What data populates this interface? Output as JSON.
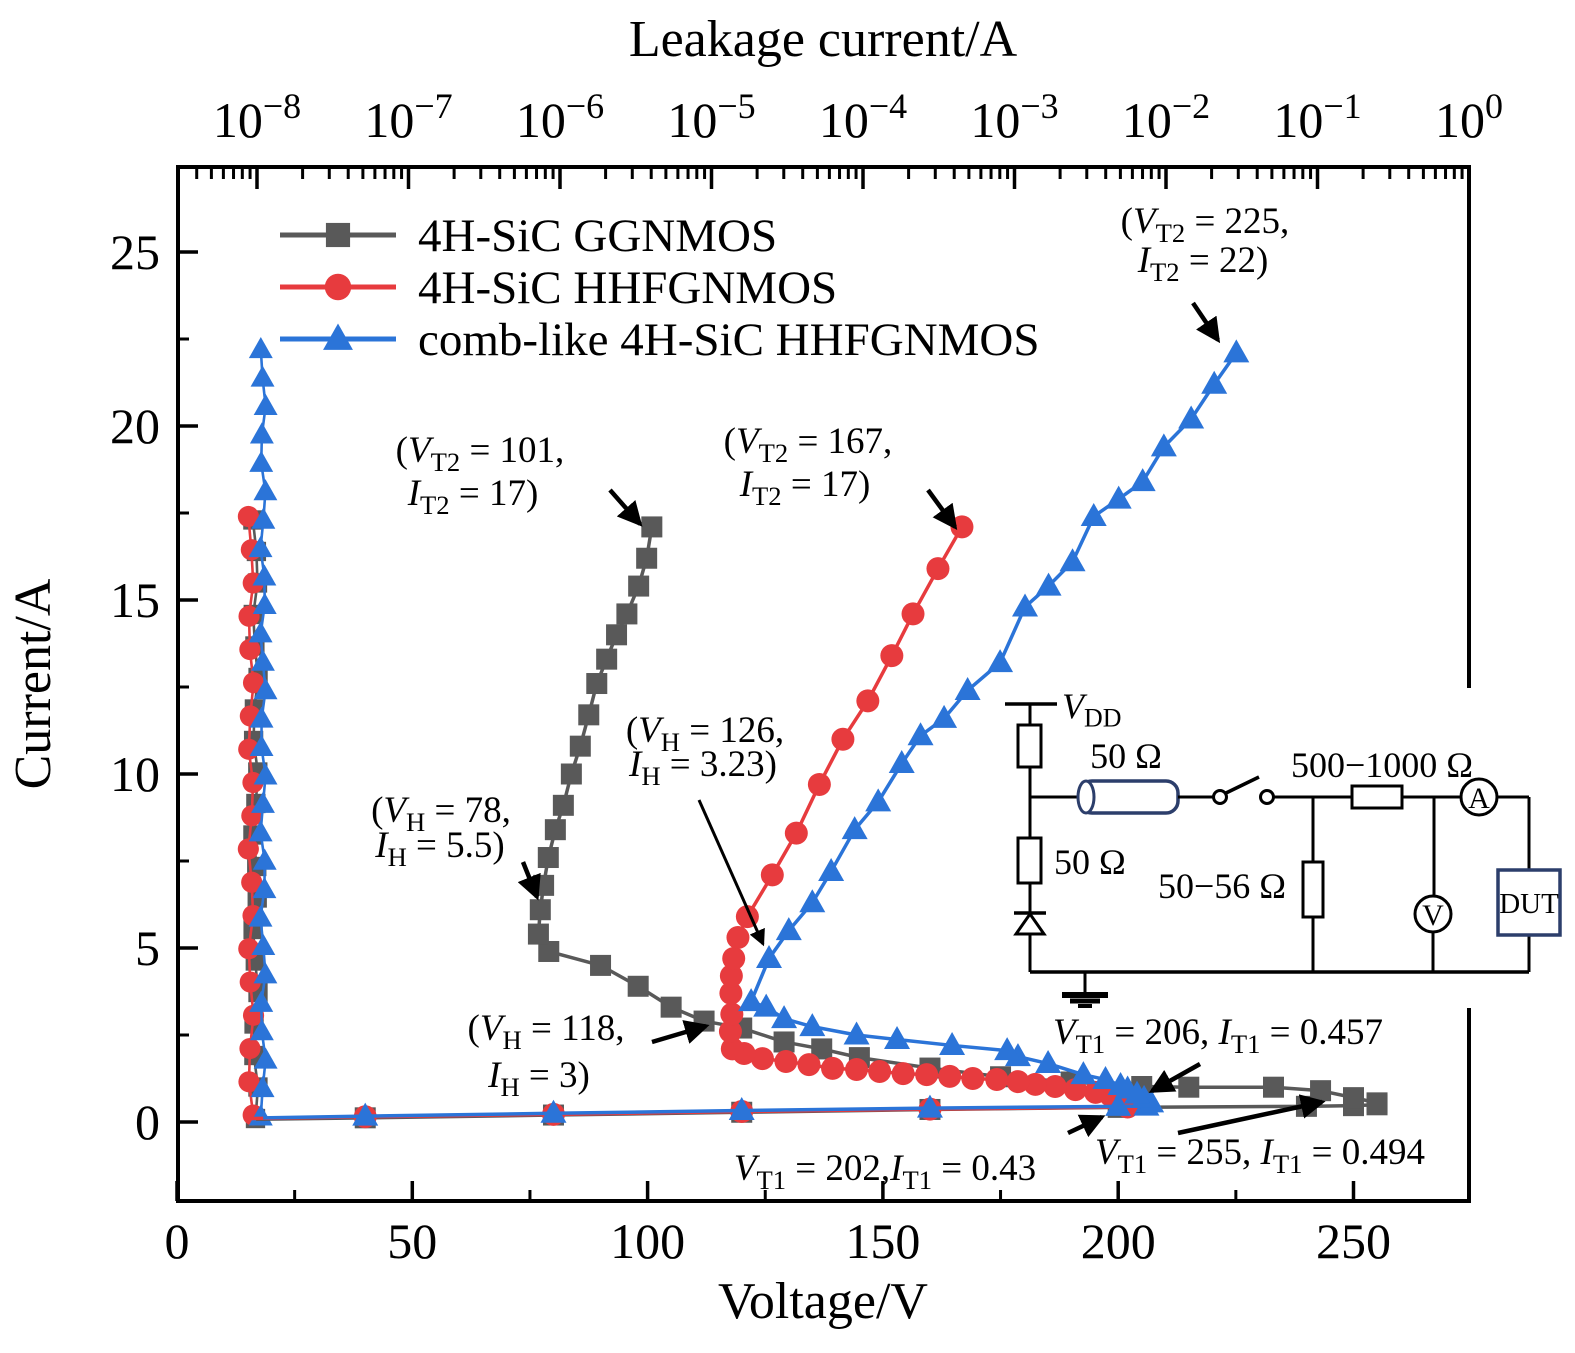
{
  "title_top": "Leakage current/A",
  "axes": {
    "x_bottom": {
      "label": "Voltage/V",
      "major_ticks": [
        0,
        50,
        100,
        150,
        200,
        250
      ],
      "minor_ticks": [
        25,
        75,
        125,
        175,
        225
      ],
      "range": [
        0,
        274
      ]
    },
    "y_left": {
      "label": "Current/A",
      "major_ticks": [
        0,
        5,
        10,
        15,
        20,
        25
      ],
      "minor_ticks": [
        2.5,
        7.5,
        12.5,
        17.5,
        22.5
      ],
      "range": [
        -2.3,
        27.7
      ]
    },
    "x_top": {
      "scale": "log",
      "decade_exponents": [
        -8,
        -7,
        -6,
        -5,
        -4,
        -3,
        -2,
        -1,
        0
      ]
    }
  },
  "legend": [
    {
      "label": "4H-SiC GGNMOS",
      "color": "#595959",
      "marker": "square"
    },
    {
      "label": "4H-SiC HHFGNMOS",
      "color": "#e73b3e",
      "marker": "circle"
    },
    {
      "label": "comb-like 4H-SiC HHFGNMOS",
      "color": "#2b74d8",
      "marker": "triangle"
    }
  ],
  "chart_data": {
    "type": "line",
    "title": "",
    "xlabel": "Voltage/V",
    "ylabel": "Current/A",
    "x2label": "Leakage current/A",
    "xlim": [
      0,
      274
    ],
    "ylim": [
      -2.3,
      27.7
    ],
    "x2lim_log10": [
      -8.52,
      0
    ],
    "series": [
      {
        "name": "4H-SiC GGNMOS",
        "color": "#595959",
        "marker": "square",
        "key_points": {
          "VT1": [
            255,
            0.494
          ],
          "VH": [
            78,
            5.5
          ],
          "VT2": [
            101,
            17
          ]
        },
        "tlp_points": [
          [
            16.8,
            0.08
          ],
          [
            40,
            0.12
          ],
          [
            80,
            0.2
          ],
          [
            120,
            0.28
          ],
          [
            160,
            0.36
          ],
          [
            200,
            0.42
          ],
          [
            240,
            0.45
          ],
          [
            250,
            0.47
          ],
          [
            255,
            0.494
          ],
          [
            255,
            0.55
          ],
          [
            250,
            0.7
          ],
          [
            243,
            0.9
          ],
          [
            233,
            1.0
          ],
          [
            215,
            1.0
          ],
          [
            205,
            1.02
          ],
          [
            190,
            1.15
          ],
          [
            175,
            1.3
          ],
          [
            160,
            1.55
          ],
          [
            145,
            1.85
          ],
          [
            137,
            2.1
          ],
          [
            129,
            2.3
          ],
          [
            120,
            2.7
          ],
          [
            112,
            2.9
          ],
          [
            105,
            3.3
          ],
          [
            98,
            3.9
          ],
          [
            90,
            4.5
          ],
          [
            79,
            4.9
          ],
          [
            76.8,
            5.4
          ],
          [
            77.2,
            6.1
          ],
          [
            77.9,
            6.8
          ],
          [
            78.9,
            7.6
          ],
          [
            80.4,
            8.4
          ],
          [
            82.1,
            9.1
          ],
          [
            83.8,
            10.0
          ],
          [
            85.7,
            10.8
          ],
          [
            87.5,
            11.7
          ],
          [
            89.2,
            12.6
          ],
          [
            91.3,
            13.3
          ],
          [
            93.4,
            14.0
          ],
          [
            95.6,
            14.6
          ],
          [
            98.1,
            15.4
          ],
          [
            99.8,
            16.2
          ],
          [
            100.9,
            17.1
          ]
        ],
        "leakage_line": {
          "log10_A": -8.01,
          "i_from": 0.1,
          "i_to": 17.3,
          "n_points": 20
        }
      },
      {
        "name": "4H-SiC HHFGNMOS",
        "color": "#e73b3e",
        "marker": "circle",
        "key_points": {
          "VT1": [
            202,
            0.43
          ],
          "VH": [
            118,
            3
          ],
          "VT2": [
            167,
            17
          ]
        },
        "tlp_points": [
          [
            15.7,
            0.1
          ],
          [
            40,
            0.15
          ],
          [
            80,
            0.22
          ],
          [
            120,
            0.3
          ],
          [
            160,
            0.37
          ],
          [
            202,
            0.43
          ],
          [
            201.5,
            0.62
          ],
          [
            198.4,
            0.76
          ],
          [
            195.2,
            0.85
          ],
          [
            190.9,
            0.93
          ],
          [
            186.6,
            1.02
          ],
          [
            182.4,
            1.08
          ],
          [
            178.7,
            1.16
          ],
          [
            174.2,
            1.22
          ],
          [
            169.1,
            1.25
          ],
          [
            164.2,
            1.31
          ],
          [
            159.3,
            1.36
          ],
          [
            154.3,
            1.39
          ],
          [
            149.3,
            1.45
          ],
          [
            144.4,
            1.51
          ],
          [
            139.3,
            1.54
          ],
          [
            134.3,
            1.65
          ],
          [
            129.4,
            1.74
          ],
          [
            124.4,
            1.82
          ],
          [
            120.5,
            1.97
          ],
          [
            118,
            2.1
          ],
          [
            117.6,
            2.6
          ],
          [
            117.9,
            3.1
          ],
          [
            117.7,
            3.7
          ],
          [
            117.8,
            4.2
          ],
          [
            118.3,
            4.7
          ],
          [
            119.2,
            5.3
          ],
          [
            121.2,
            5.9
          ],
          [
            126.5,
            7.1
          ],
          [
            131.6,
            8.3
          ],
          [
            136.5,
            9.7
          ],
          [
            141.5,
            11.0
          ],
          [
            146.8,
            12.1
          ],
          [
            151.9,
            13.4
          ],
          [
            156.4,
            14.6
          ],
          [
            161.7,
            15.9
          ],
          [
            166.8,
            17.1
          ]
        ],
        "leakage_line": {
          "log10_A": -8.04,
          "i_from": 0.2,
          "i_to": 17.4,
          "n_points": 19
        }
      },
      {
        "name": "comb-like 4H-SiC HHFGNMOS",
        "color": "#2b74d8",
        "marker": "triangle",
        "key_points": {
          "VT1": [
            206,
            0.457
          ],
          "VH": [
            126,
            3.23
          ],
          "VT2": [
            225,
            22
          ]
        },
        "tlp_points": [
          [
            18.3,
            0.12
          ],
          [
            40,
            0.17
          ],
          [
            80,
            0.25
          ],
          [
            120,
            0.33
          ],
          [
            160,
            0.4
          ],
          [
            200,
            0.45
          ],
          [
            206,
            0.457
          ],
          [
            207,
            0.55
          ],
          [
            205.5,
            0.68
          ],
          [
            204,
            0.8
          ],
          [
            202,
            0.95
          ],
          [
            200.5,
            1.05
          ],
          [
            197.3,
            1.22
          ],
          [
            192.6,
            1.36
          ],
          [
            185.1,
            1.68
          ],
          [
            178.7,
            1.88
          ],
          [
            176.4,
            2.05
          ],
          [
            164.7,
            2.2
          ],
          [
            153,
            2.37
          ],
          [
            144.4,
            2.5
          ],
          [
            135,
            2.74
          ],
          [
            129,
            2.97
          ],
          [
            125.2,
            3.3
          ],
          [
            122,
            3.46
          ],
          [
            125.8,
            4.7
          ],
          [
            130,
            5.5
          ],
          [
            135,
            6.3
          ],
          [
            139,
            7.2
          ],
          [
            144,
            8.4
          ],
          [
            149,
            9.2
          ],
          [
            154,
            10.3
          ],
          [
            158,
            11.1
          ],
          [
            163,
            11.6
          ],
          [
            168,
            12.4
          ],
          [
            174.9,
            13.2
          ],
          [
            180.2,
            14.8
          ],
          [
            185.2,
            15.4
          ],
          [
            190.3,
            16.1
          ],
          [
            194.8,
            17.4
          ],
          [
            200.1,
            17.9
          ],
          [
            205.2,
            18.4
          ],
          [
            209.7,
            19.4
          ],
          [
            215.5,
            20.2
          ],
          [
            220.4,
            21.2
          ],
          [
            225.1,
            22.1
          ]
        ],
        "leakage_line": {
          "log10_A": -7.96,
          "i_from": 0.15,
          "i_to": 22.2,
          "n_points": 28
        }
      }
    ]
  },
  "annotations": [
    {
      "id": "vt2-ggnmos",
      "lines": [
        "(V_T2 = 101,",
        "I_T2 = 17)"
      ]
    },
    {
      "id": "vt2-hhfgnmos",
      "lines": [
        "(V_T2 = 167,",
        "I_T2 = 17)"
      ]
    },
    {
      "id": "vt2-comb",
      "lines": [
        "(V_T2 = 225,",
        "I_T2 = 22)"
      ]
    },
    {
      "id": "vh-ggnmos",
      "lines": [
        "(V_H = 78,",
        "I_H = 5.5)"
      ]
    },
    {
      "id": "vh-comb",
      "lines": [
        "(V_H = 126,",
        "I_H = 3.23)"
      ]
    },
    {
      "id": "vh-hhfgnmos",
      "lines": [
        "(V_H = 118,",
        "I_H = 3)"
      ]
    },
    {
      "id": "vt1-hhfgnmos",
      "lines": [
        "V_T1 = 202,I_T1 = 0.43"
      ]
    },
    {
      "id": "vt1-comb",
      "lines": [
        "V_T1 = 206, I_T1 = 0.457"
      ]
    },
    {
      "id": "vt1-ggnmos",
      "lines": [
        "V_T1 = 255, I_T1 = 0.494"
      ]
    }
  ],
  "circuit": {
    "vdd": "V_DD",
    "coax_label": "50 Ω",
    "lower_resistor_label": "50 Ω",
    "series_resistor_label": "500−1000 Ω",
    "shunt_resistor_label": "50−56 Ω",
    "ammeter": "A",
    "voltmeter": "V",
    "dut": "DUT"
  }
}
